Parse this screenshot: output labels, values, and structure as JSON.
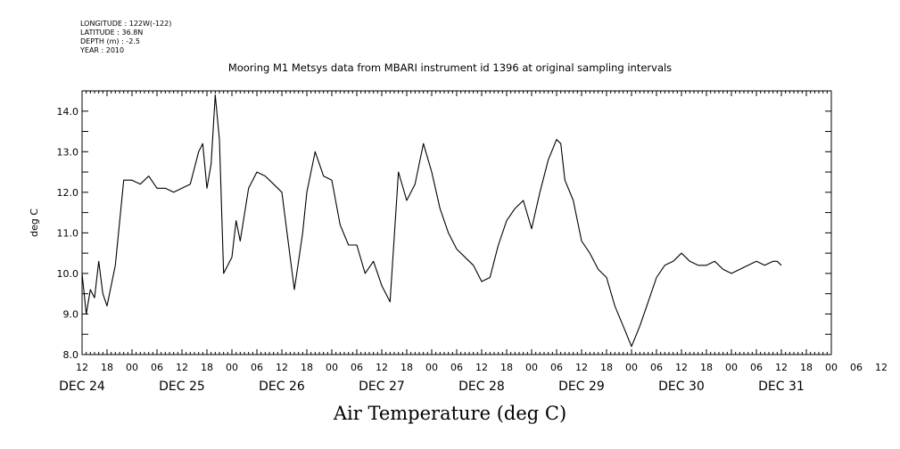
{
  "meta": {
    "longitude": "LONGITUDE : 122W(-122)",
    "latitude": "LATITUDE : 36.8N",
    "depth": "DEPTH (m) : -2.5",
    "year": "YEAR : 2010"
  },
  "chart_data": {
    "type": "line",
    "title": "Mooring M1 Metsys data from MBARI instrument id 1396 at original sampling intervals",
    "xlabel": "Air Temperature (deg C)",
    "ylabel": "deg C",
    "ylim": [
      8.0,
      14.5
    ],
    "y_ticks": [
      "8.0",
      "9.0",
      "10.0",
      "11.0",
      "12.0",
      "13.0",
      "14.0"
    ],
    "hour_ticks": [
      "12",
      "18",
      "00",
      "06",
      "12",
      "18",
      "00",
      "06",
      "12",
      "18",
      "00",
      "06",
      "12",
      "18",
      "00",
      "06",
      "12",
      "18",
      "00",
      "06",
      "12",
      "18",
      "00",
      "06",
      "12",
      "18",
      "00",
      "06",
      "12",
      "18",
      "00",
      "06",
      "12"
    ],
    "day_labels": [
      "DEC 24",
      "DEC 25",
      "DEC 26",
      "DEC 27",
      "DEC 28",
      "DEC 29",
      "DEC 30",
      "DEC 31"
    ],
    "grid": false,
    "series": [
      {
        "x": [
          "24 12:00",
          "24 13:00",
          "24 14:00",
          "24 15:00",
          "24 16:00",
          "24 17:00",
          "24 18:00",
          "24 20:00",
          "24 22:00",
          "25 00:00",
          "25 02:00",
          "25 04:00",
          "25 06:00",
          "25 08:00",
          "25 10:00",
          "25 12:00",
          "25 14:00",
          "25 15:00",
          "25 16:00",
          "25 17:00",
          "25 18:00",
          "25 19:00",
          "25 20:00",
          "25 21:00",
          "25 22:00",
          "26 00:00",
          "26 01:00",
          "26 02:00",
          "26 04:00",
          "26 06:00",
          "26 08:00",
          "26 10:00",
          "26 12:00",
          "26 14:00",
          "26 15:00",
          "26 16:00",
          "26 17:00",
          "26 18:00",
          "26 20:00",
          "26 22:00",
          "27 00:00",
          "27 02:00",
          "27 04:00",
          "27 06:00",
          "27 08:00",
          "27 10:00",
          "27 12:00",
          "27 14:00",
          "27 15:00",
          "27 16:00",
          "27 18:00",
          "27 20:00",
          "27 22:00",
          "28 00:00",
          "28 02:00",
          "28 04:00",
          "28 06:00",
          "28 08:00",
          "28 10:00",
          "28 12:00",
          "28 14:00",
          "28 16:00",
          "28 18:00",
          "28 20:00",
          "28 22:00",
          "29 00:00",
          "29 02:00",
          "29 04:00",
          "29 06:00",
          "29 07:00",
          "29 08:00",
          "29 10:00",
          "29 12:00",
          "29 14:00",
          "29 16:00",
          "29 18:00",
          "29 20:00",
          "29 22:00",
          "30 00:00",
          "30 02:00",
          "30 04:00",
          "30 06:00",
          "30 08:00",
          "30 10:00",
          "30 12:00",
          "30 13:00",
          "30 14:00",
          "30 16:00",
          "30 18:00",
          "30 20:00",
          "30 22:00",
          "31 00:00",
          "31 02:00",
          "31 04:00",
          "31 06:00",
          "31 08:00",
          "31 10:00",
          "31 11:00",
          "31 12:00"
        ],
        "y": [
          10.0,
          9.0,
          9.6,
          9.4,
          10.3,
          9.5,
          9.2,
          10.2,
          12.3,
          12.3,
          12.2,
          12.4,
          12.1,
          12.1,
          12.0,
          12.1,
          12.2,
          12.6,
          13.0,
          13.2,
          12.1,
          12.7,
          14.4,
          13.3,
          10.0,
          10.4,
          11.3,
          10.8,
          12.1,
          12.5,
          12.4,
          12.2,
          12.0,
          10.4,
          9.6,
          10.3,
          11.0,
          12.0,
          13.0,
          12.4,
          12.3,
          11.2,
          10.7,
          10.7,
          10.0,
          10.3,
          9.7,
          9.3,
          10.9,
          12.5,
          11.8,
          12.2,
          13.2,
          12.5,
          11.6,
          11.0,
          10.6,
          10.4,
          10.2,
          9.8,
          9.9,
          10.7,
          11.3,
          11.6,
          11.8,
          11.1,
          12.0,
          12.8,
          13.3,
          13.2,
          12.3,
          11.8,
          10.8,
          10.5,
          10.1,
          9.9,
          9.2,
          8.7,
          8.2,
          8.7,
          9.3,
          9.9,
          10.2,
          10.3,
          10.5,
          10.4,
          10.3,
          10.2,
          10.2,
          10.3,
          10.1,
          10.0,
          10.1,
          10.2,
          10.3,
          10.2,
          10.3,
          10.3,
          10.2
        ]
      }
    ]
  }
}
